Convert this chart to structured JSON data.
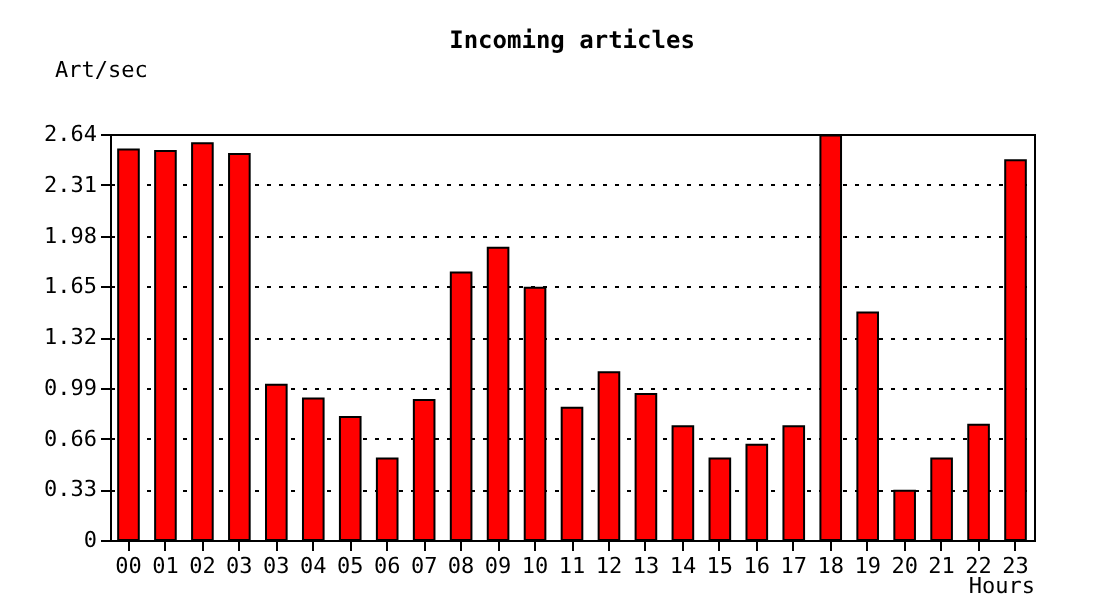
{
  "chart_data": {
    "type": "bar",
    "title": "Incoming articles",
    "xlabel": "Hours",
    "ylabel": "Art/sec",
    "categories": [
      "00",
      "01",
      "02",
      "03",
      "03",
      "04",
      "05",
      "06",
      "07",
      "08",
      "09",
      "10",
      "11",
      "12",
      "13",
      "14",
      "15",
      "16",
      "17",
      "18",
      "19",
      "20",
      "21",
      "22",
      "23"
    ],
    "values": [
      2.54,
      2.53,
      2.58,
      2.51,
      1.01,
      0.92,
      0.8,
      0.53,
      0.91,
      1.74,
      1.9,
      1.64,
      0.86,
      1.09,
      0.95,
      0.74,
      0.53,
      0.62,
      0.74,
      2.63,
      1.48,
      0.32,
      0.53,
      0.75,
      2.47
    ],
    "color": "#ff0000",
    "ylim": [
      0,
      2.64
    ],
    "yticks": [
      0,
      0.33,
      0.66,
      0.99,
      1.32,
      1.65,
      1.98,
      2.31,
      2.64
    ],
    "grid": "y"
  }
}
